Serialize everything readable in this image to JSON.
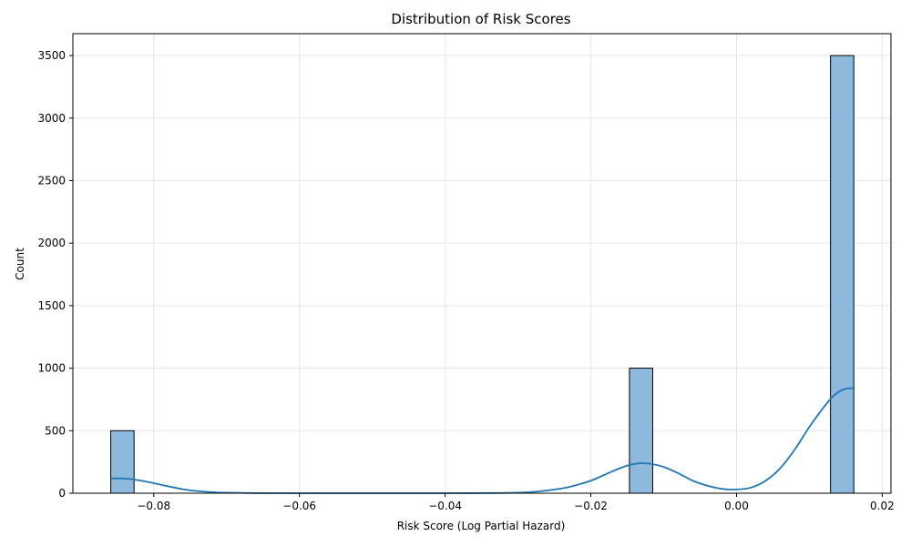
{
  "chart_data": {
    "type": "histogram",
    "title": "Distribution of Risk Scores",
    "xlabel": "Risk Score (Log Partial Hazard)",
    "ylabel": "Count",
    "xlim": [
      -0.0911,
      0.0212
    ],
    "ylim": [
      0,
      3675
    ],
    "xticks": [
      -0.08,
      -0.06,
      -0.04,
      -0.02,
      0.0,
      0.02
    ],
    "xtick_labels": [
      "−0.08",
      "−0.06",
      "−0.04",
      "−0.02",
      "0.00",
      "0.02"
    ],
    "yticks": [
      0,
      500,
      1000,
      1500,
      2000,
      2500,
      3000,
      3500
    ],
    "ytick_labels": [
      "0",
      "500",
      "1000",
      "1500",
      "2000",
      "2500",
      "3000",
      "3500"
    ],
    "grid": true,
    "bars": [
      {
        "x0": -0.0859,
        "x1": -0.0827,
        "count": 500
      },
      {
        "x0": -0.0147,
        "x1": -0.0115,
        "count": 1000
      },
      {
        "x0": 0.0129,
        "x1": 0.0161,
        "count": 3500
      }
    ],
    "kde": {
      "x": [
        -0.0859,
        -0.0845,
        -0.083,
        -0.0815,
        -0.08,
        -0.078,
        -0.076,
        -0.074,
        -0.072,
        -0.07,
        -0.066,
        -0.06,
        -0.05,
        -0.04,
        -0.032,
        -0.028,
        -0.024,
        -0.022,
        -0.02,
        -0.018,
        -0.016,
        -0.0145,
        -0.013,
        -0.0115,
        -0.01,
        -0.008,
        -0.006,
        -0.004,
        -0.002,
        0.0,
        0.002,
        0.004,
        0.006,
        0.008,
        0.01,
        0.012,
        0.013,
        0.014,
        0.015,
        0.016
      ],
      "y": [
        118,
        118,
        112,
        98,
        80,
        55,
        32,
        17,
        8,
        4,
        1,
        0,
        0,
        0,
        2,
        10,
        38,
        65,
        100,
        150,
        200,
        228,
        240,
        232,
        210,
        160,
        100,
        60,
        35,
        30,
        45,
        100,
        200,
        350,
        530,
        690,
        760,
        810,
        835,
        840
      ]
    },
    "bar_fill": "#8db9dc",
    "bar_edge": "#000000",
    "kde_color": "#1f77b4",
    "grid_color": "#e6e6e6"
  }
}
